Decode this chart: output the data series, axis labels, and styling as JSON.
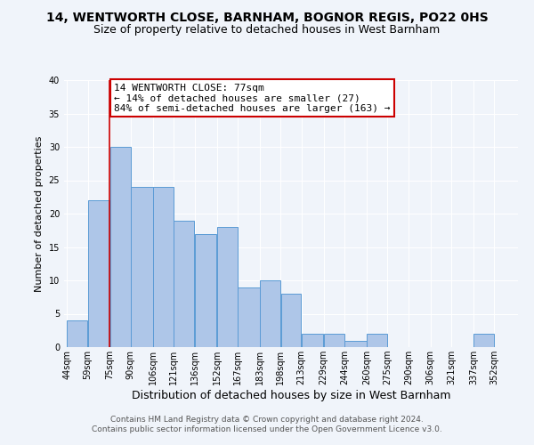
{
  "title": "14, WENTWORTH CLOSE, BARNHAM, BOGNOR REGIS, PO22 0HS",
  "subtitle": "Size of property relative to detached houses in West Barnham",
  "xlabel": "Distribution of detached houses by size in West Barnham",
  "ylabel": "Number of detached properties",
  "bin_labels": [
    "44sqm",
    "59sqm",
    "75sqm",
    "90sqm",
    "106sqm",
    "121sqm",
    "136sqm",
    "152sqm",
    "167sqm",
    "183sqm",
    "198sqm",
    "213sqm",
    "229sqm",
    "244sqm",
    "260sqm",
    "275sqm",
    "290sqm",
    "306sqm",
    "321sqm",
    "337sqm",
    "352sqm"
  ],
  "bin_edges": [
    44,
    59,
    75,
    90,
    106,
    121,
    136,
    152,
    167,
    183,
    198,
    213,
    229,
    244,
    260,
    275,
    290,
    306,
    321,
    337,
    352,
    367
  ],
  "values": [
    4,
    22,
    30,
    24,
    24,
    19,
    17,
    18,
    9,
    10,
    8,
    2,
    2,
    1,
    2,
    0,
    0,
    0,
    0,
    2,
    0
  ],
  "bar_color": "#aec6e8",
  "bar_edgecolor": "#5b9bd5",
  "vline_x": 75,
  "vline_color": "#cc0000",
  "annotation_text": "14 WENTWORTH CLOSE: 77sqm\n← 14% of detached houses are smaller (27)\n84% of semi-detached houses are larger (163) →",
  "annotation_box_edgecolor": "#cc0000",
  "ylim": [
    0,
    40
  ],
  "yticks": [
    0,
    5,
    10,
    15,
    20,
    25,
    30,
    35,
    40
  ],
  "footer_line1": "Contains HM Land Registry data © Crown copyright and database right 2024.",
  "footer_line2": "Contains public sector information licensed under the Open Government Licence v3.0.",
  "background_color": "#f0f4fa",
  "grid_color": "#ffffff",
  "title_fontsize": 10,
  "subtitle_fontsize": 9,
  "xlabel_fontsize": 9,
  "ylabel_fontsize": 8,
  "annotation_fontsize": 8,
  "footer_fontsize": 6.5,
  "tick_fontsize": 7
}
